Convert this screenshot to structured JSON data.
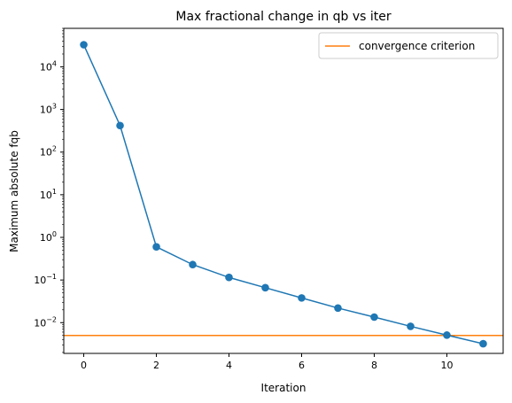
{
  "chart_data": {
    "type": "line",
    "title": "Max fractional change in qb vs iter",
    "xlabel": "Iteration",
    "ylabel": "Maximum absolute fqb",
    "yscale": "log",
    "xlim": [
      -0.55,
      11.55
    ],
    "ylim": [
      0.0019,
      80000
    ],
    "grid": false,
    "legend_position": "top-right",
    "x_ticks": [
      0,
      2,
      4,
      6,
      8,
      10
    ],
    "y_ticks": [
      {
        "value": 0.01,
        "base": "10",
        "exp": "−2"
      },
      {
        "value": 0.1,
        "base": "10",
        "exp": "−1"
      },
      {
        "value": 1,
        "base": "10",
        "exp": "0"
      },
      {
        "value": 10,
        "base": "10",
        "exp": "1"
      },
      {
        "value": 100,
        "base": "10",
        "exp": "2"
      },
      {
        "value": 1000,
        "base": "10",
        "exp": "3"
      },
      {
        "value": 10000,
        "base": "10",
        "exp": "4"
      }
    ],
    "series": [
      {
        "color": "#1f77b4",
        "marker": "circle",
        "x": [
          0,
          1,
          2,
          3,
          4,
          5,
          6,
          7,
          8,
          9,
          10,
          11
        ],
        "y": [
          33000,
          420,
          0.6,
          0.23,
          0.115,
          0.066,
          0.038,
          0.022,
          0.0135,
          0.0082,
          0.0051,
          0.0032
        ]
      }
    ],
    "reference_lines": [
      {
        "name": "convergence criterion",
        "orientation": "horizontal",
        "y": 0.005,
        "color": "#ff7f0e"
      }
    ]
  }
}
